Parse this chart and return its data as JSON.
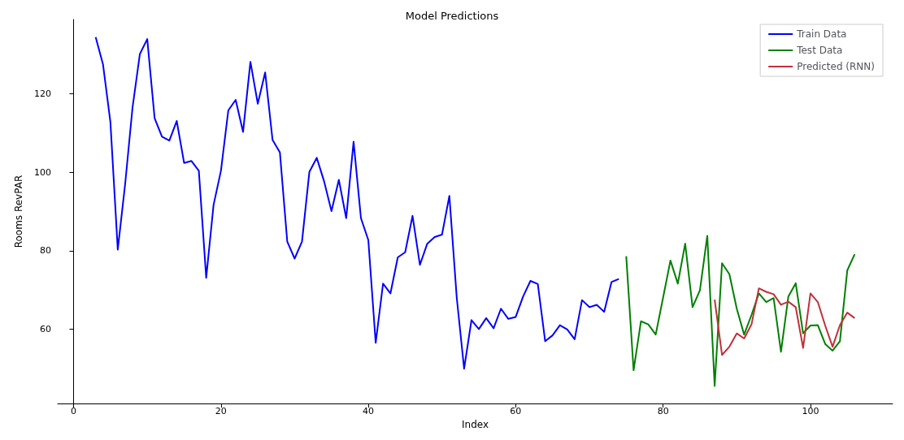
{
  "chart_data": {
    "type": "line",
    "title": "Model Predictions",
    "xlabel": "Index",
    "ylabel": "Rooms RevPAR",
    "xlim": [
      -2.15,
      111.15
    ],
    "xticks": [
      0,
      20,
      40,
      60,
      80,
      100
    ],
    "ylim": [
      41,
      139
    ],
    "yticks": [
      60,
      80,
      100,
      120
    ],
    "grid": false,
    "legend": "top right",
    "marker": "none",
    "line_style": "solid",
    "series": [
      {
        "name": "Train Data",
        "color": "#0000ff",
        "x": [
          3,
          4,
          5,
          6,
          7,
          8,
          9,
          10,
          11,
          12,
          13,
          14,
          15,
          16,
          17,
          18,
          19,
          20,
          21,
          22,
          23,
          24,
          25,
          26,
          27,
          28,
          29,
          30,
          31,
          32,
          33,
          34,
          35,
          36,
          37,
          38,
          39,
          40,
          41,
          42,
          43,
          44,
          45,
          46,
          47,
          48,
          49,
          50,
          51,
          52,
          53,
          54,
          55,
          56,
          57,
          58,
          59,
          60,
          61,
          62,
          63,
          64,
          65,
          66,
          67,
          68,
          69,
          70,
          71,
          72,
          73,
          74
        ],
        "values": [
          134.5,
          127.5,
          112.8,
          80.3,
          97,
          116.5,
          130.2,
          134,
          113.8,
          109.1,
          108.1,
          113.1,
          102.4,
          102.9,
          100.4,
          73.1,
          91.7,
          100.4,
          115.8,
          118.5,
          110.3,
          128.2,
          117.5,
          125.5,
          108.3,
          105.1,
          82.3,
          78,
          82.3,
          100.1,
          103.7,
          97.7,
          90.1,
          98.1,
          88.3,
          107.8,
          88.3,
          82.7,
          56.5,
          71.6,
          69.1,
          78.3,
          79.6,
          88.9,
          76.4,
          81.8,
          83.5,
          84.1,
          94,
          68,
          49.9,
          62.3,
          60,
          62.8,
          60.2,
          65.2,
          62.6,
          63.1,
          68.3,
          72.3,
          71.5,
          56.9,
          58.4,
          61,
          59.9,
          57.4,
          67.4,
          65.6,
          66.2,
          64.4,
          72,
          72.8
        ]
      },
      {
        "name": "Test Data",
        "color": "#008000",
        "x": [
          75,
          76,
          77,
          78,
          79,
          80,
          81,
          82,
          83,
          84,
          85,
          86,
          87,
          88,
          89,
          90,
          91,
          92,
          93,
          94,
          95,
          96,
          97,
          98,
          99,
          100,
          101,
          102,
          103,
          104,
          105,
          106
        ],
        "values": [
          78.6,
          49.5,
          62,
          61.2,
          58.6,
          68,
          77.5,
          71.6,
          81.8,
          65.6,
          69.9,
          83.8,
          45.5,
          76.8,
          74,
          65.2,
          58.6,
          63.6,
          69.1,
          66.9,
          67.9,
          54.2,
          68.3,
          71.7,
          58.9,
          60.9,
          61,
          56.2,
          54.5,
          56.9,
          75,
          79.1
        ]
      },
      {
        "name": "Predicted (RNN)",
        "color": "#c0303a",
        "x": [
          87,
          88,
          89,
          90,
          91,
          92,
          93,
          94,
          95,
          96,
          97,
          98,
          99,
          100,
          101,
          102,
          103,
          104,
          105,
          106
        ],
        "values": [
          67.5,
          53.4,
          55.5,
          58.9,
          57.6,
          61.2,
          70.4,
          69.5,
          68.9,
          66.2,
          67,
          65.6,
          55.2,
          69.1,
          66.9,
          60.9,
          55.5,
          61,
          64.2,
          62.8
        ]
      }
    ]
  }
}
